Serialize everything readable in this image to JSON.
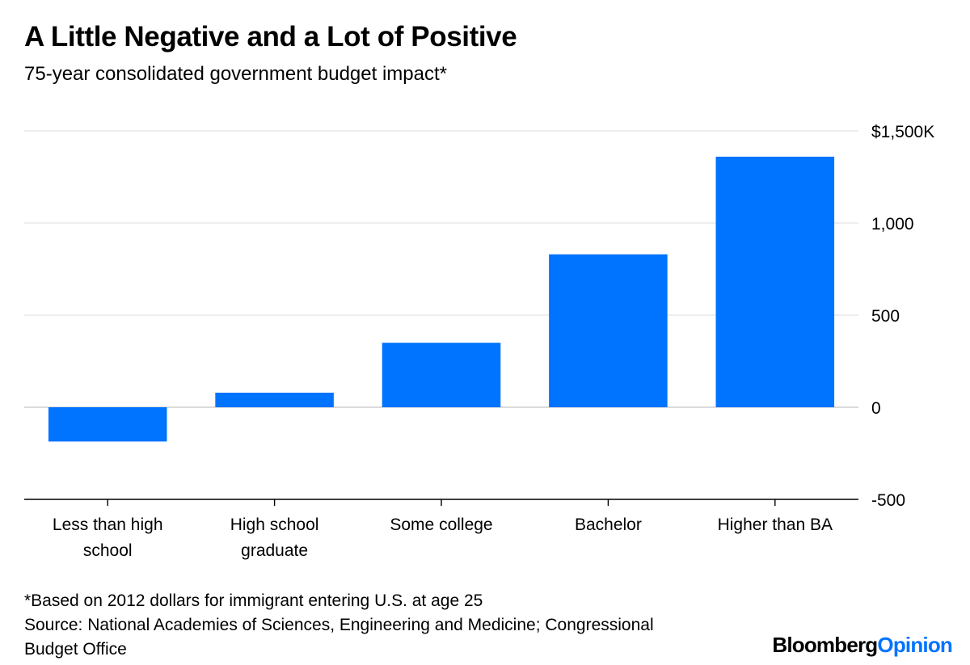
{
  "header": {
    "title": "A Little Negative and a Lot of Positive",
    "subtitle": "75-year consolidated government budget impact*"
  },
  "chart_data": {
    "type": "bar",
    "title": "A Little Negative and a Lot of Positive",
    "subtitle": "75-year consolidated government budget impact*",
    "categories": [
      [
        "Less than high",
        "school"
      ],
      [
        "High school",
        "graduate"
      ],
      [
        "Some college"
      ],
      [
        "Bachelor"
      ],
      [
        "Higher than BA"
      ]
    ],
    "values": [
      -186,
      79,
      350,
      830,
      1360
    ],
    "ylim": [
      -500,
      1500
    ],
    "yticks": [
      -500,
      0,
      500,
      1000,
      1500
    ],
    "ytick_labels": [
      "-500",
      "0",
      "500",
      "1,000",
      "$1,500K"
    ],
    "y_axis_side": "right",
    "grid": true,
    "bar_color": "#0073ff"
  },
  "footer": {
    "note": "*Based on 2012 dollars for immigrant entering U.S. at age 25",
    "source_line1": "Source: National Academies of Sciences, Engineering and Medicine; Congressional",
    "source_line2": "Budget Office",
    "brand_part1": "Bloomberg",
    "brand_part2": "Opinion"
  }
}
